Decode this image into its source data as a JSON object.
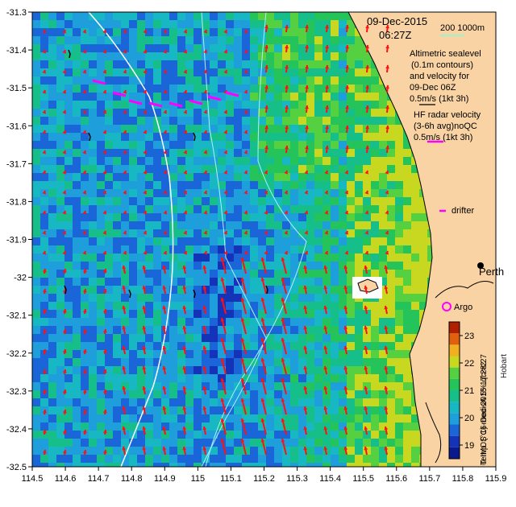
{
  "map": {
    "date_line1": "09-Dec-2015",
    "date_line2": "06:27Z",
    "depth_contour_label": "200  1000m",
    "legend_altimetry": [
      "Altimetric sealevel",
      "(0.1m contours)",
      "and velocity for",
      "09-Dec 06Z",
      "0.5m/s (1kt 3h)"
    ],
    "legend_hf_radar": [
      "HF radar velocity",
      "(3-6h avg)noQC",
      "0.5m/s (1kt 3h)"
    ],
    "legend_drifter": "drifter",
    "legend_argo": "Argo",
    "place_perth": "Perth",
    "place_hobart": "Hobart",
    "credit": "© IMOS 16-Dec-2015 17:28:27",
    "colorbar_label": "Temp. (°C) modisA 5% ql>=2",
    "colorbar_ticks": [
      "19",
      "20",
      "21",
      "22",
      "23"
    ],
    "colorbar_range": [
      18.5,
      23.5
    ],
    "x_ticks": [
      "114.5",
      "114.6",
      "114.7",
      "114.8",
      "114.9",
      "115",
      "115.1",
      "115.2",
      "115.3",
      "115.4",
      "115.5",
      "115.6",
      "115.7",
      "115.8",
      "115.9"
    ],
    "y_ticks": [
      "-31.3",
      "-31.4",
      "-31.5",
      "-31.6",
      "-31.7",
      "-31.8",
      "-31.9",
      "-32",
      "-32.1",
      "-32.2",
      "-32.3",
      "-32.4",
      "-32.5"
    ],
    "lon_range": [
      114.5,
      115.9
    ],
    "lat_range": [
      -32.5,
      -31.3
    ],
    "colors": {
      "cold": "#0a1a8c",
      "mid": "#1ea0e0",
      "warm": "#22c060",
      "land": "#f9d3a3",
      "hf_vector": "#ff00ff",
      "alt_vector": "#ff1111"
    }
  }
}
